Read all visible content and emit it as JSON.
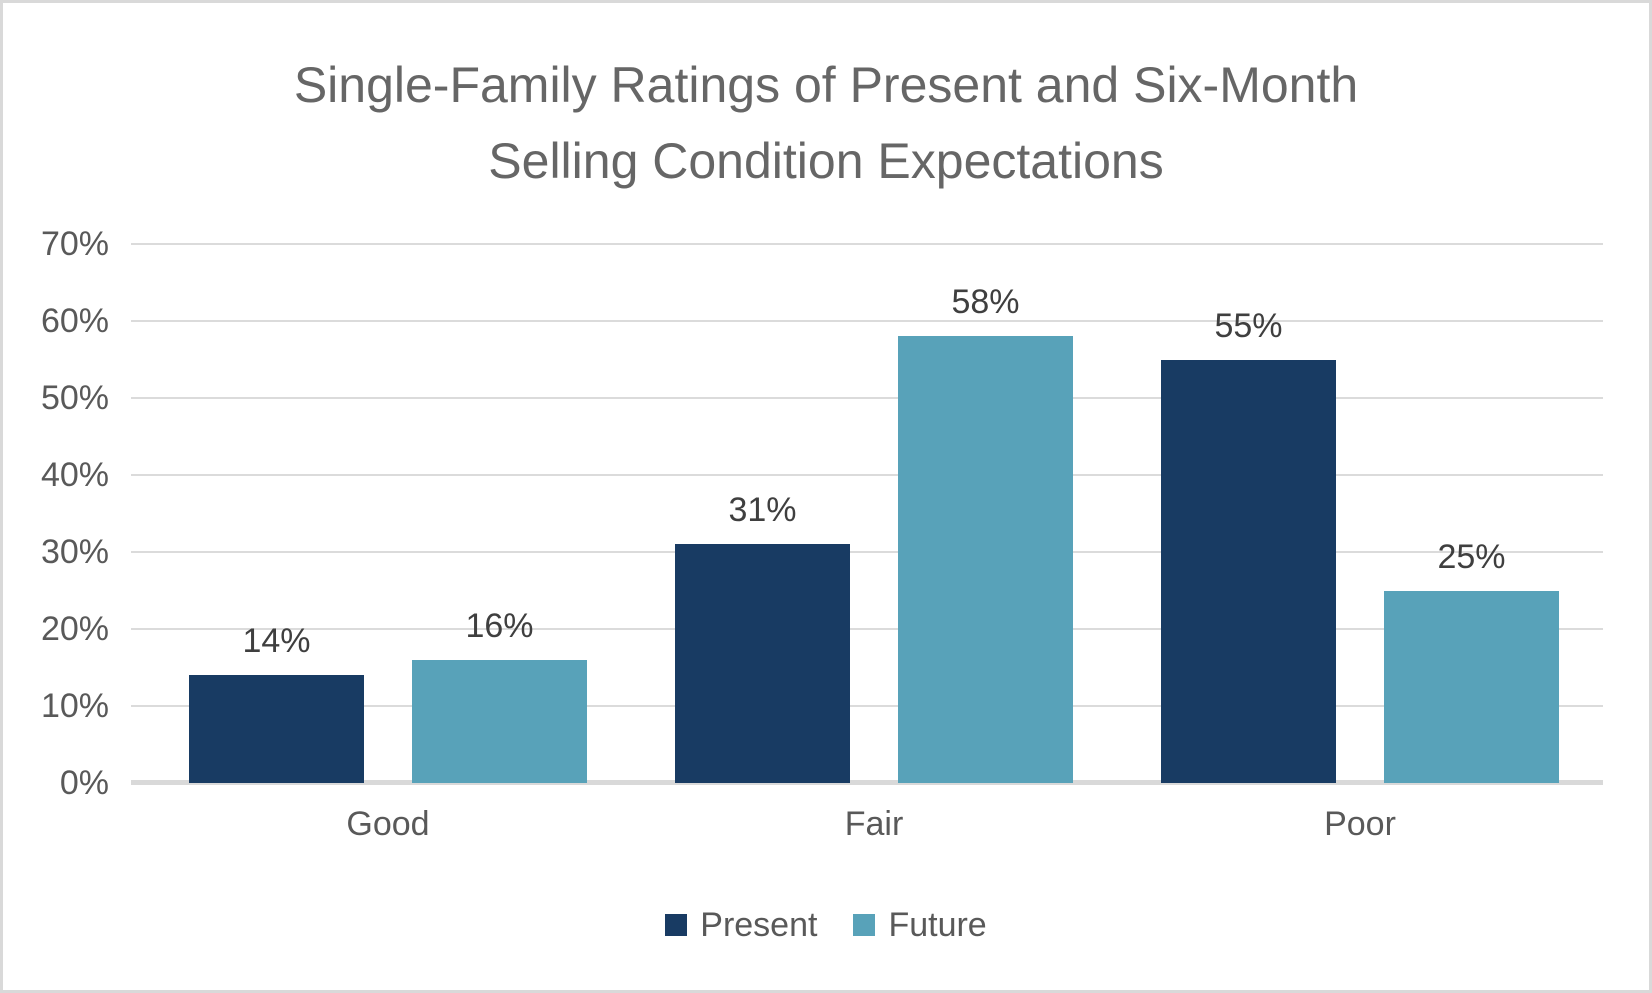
{
  "window": {
    "background_color": "#ffffff",
    "border_color": "#d9d9d9"
  },
  "chart_data": {
    "type": "bar",
    "title": "Single-Family Ratings of Present and Six-Month Selling Condition Expectations",
    "title_lines": [
      "Single-Family Ratings of Present and Six-Month",
      "Selling Condition Expectations"
    ],
    "title_color": "#666666",
    "categories": [
      "Good",
      "Fair",
      "Poor"
    ],
    "series": [
      {
        "name": "Present",
        "color": "#183b63",
        "values": [
          14,
          31,
          55
        ],
        "labels": [
          "14%",
          "31%",
          "55%"
        ]
      },
      {
        "name": "Future",
        "color": "#58a2b9",
        "values": [
          16,
          58,
          25
        ],
        "labels": [
          "16%",
          "58%",
          "25%"
        ]
      }
    ],
    "xlabel": "",
    "ylabel": "",
    "y_axis": {
      "min": 0,
      "max": 70,
      "tick_step": 10,
      "ticks": [
        "0%",
        "10%",
        "20%",
        "30%",
        "40%",
        "50%",
        "60%",
        "70%"
      ],
      "gridlines": true,
      "gridline_color": "#dbdbdb",
      "axis_line_color": "#d9d9d9",
      "label_color": "#595959"
    },
    "data_label_color": "#3f3f3f",
    "legend": {
      "position": "bottom",
      "entries": [
        "Present",
        "Future"
      ]
    }
  }
}
